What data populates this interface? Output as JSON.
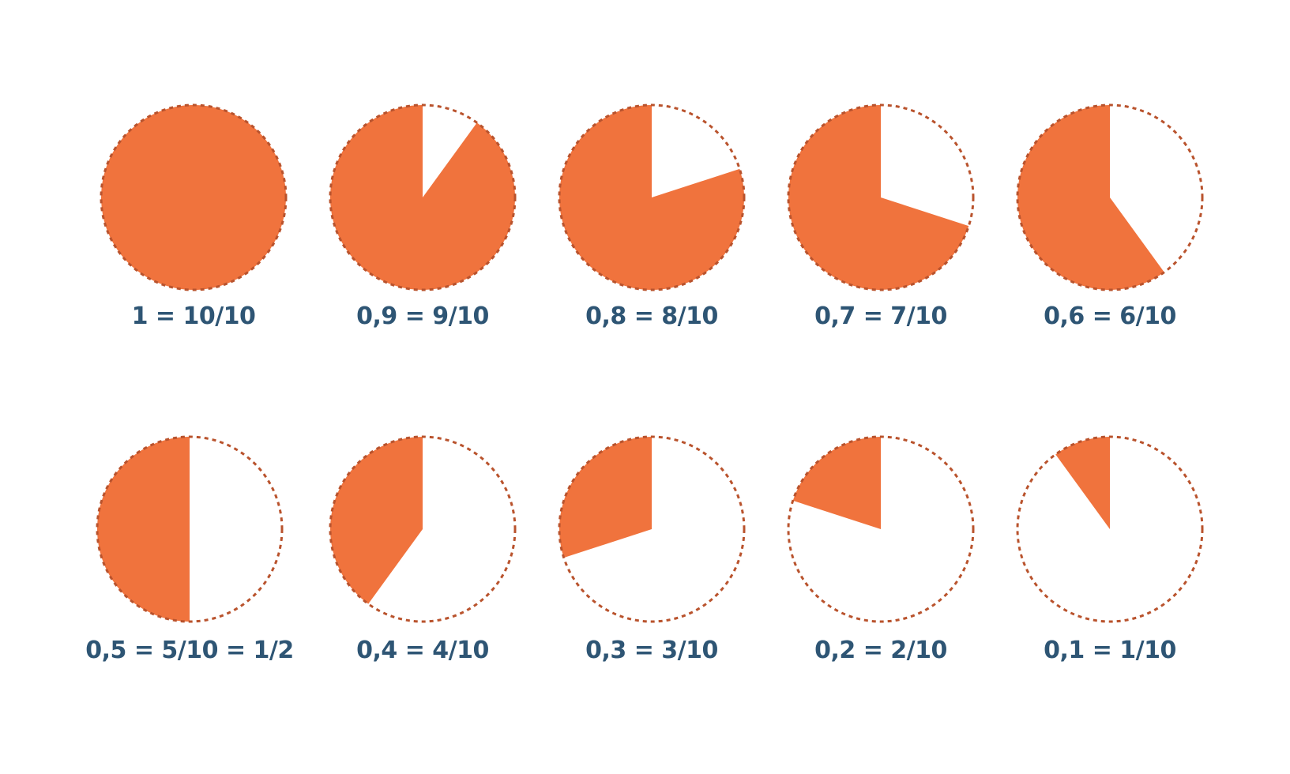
{
  "colors": {
    "fill": "#F0733D",
    "outline": "#B9532D",
    "label": "#2E5574",
    "background": "#FFFFFF"
  },
  "fractions": [
    {
      "label": "1 = 10/10",
      "value": 1.0
    },
    {
      "label": "0,9 = 9/10",
      "value": 0.9
    },
    {
      "label": "0,8 = 8/10",
      "value": 0.8
    },
    {
      "label": "0,7 = 7/10",
      "value": 0.7
    },
    {
      "label": "0,6 = 6/10",
      "value": 0.6
    },
    {
      "label": "0,5 = 5/10 = 1/2",
      "value": 0.5
    },
    {
      "label": "0,4 = 4/10",
      "value": 0.4
    },
    {
      "label": "0,3 = 3/10",
      "value": 0.3
    },
    {
      "label": "0,2 = 2/10",
      "value": 0.2
    },
    {
      "label": "0,1 = 1/10",
      "value": 0.1
    }
  ]
}
